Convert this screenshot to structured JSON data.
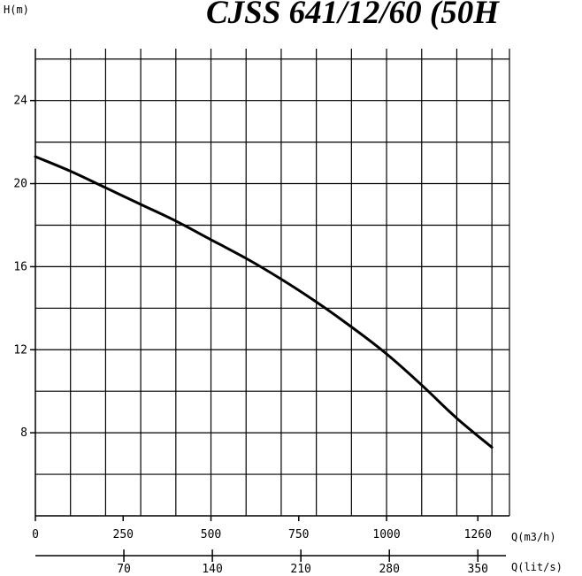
{
  "chart_data": {
    "type": "line",
    "title": "CJSS 641/12/60 (50H",
    "ylabel": "H(m)",
    "xlabel_primary": "Q(m3/h)",
    "xlabel_secondary": "Q(lit/s)",
    "ylim": [
      4,
      26.5
    ],
    "xlim": [
      0,
      1350
    ],
    "y_ticks": [
      8,
      12,
      16,
      20,
      24
    ],
    "x_ticks_primary": [
      {
        "value": 0,
        "label": "0"
      },
      {
        "value": 250,
        "label": "250"
      },
      {
        "value": 500,
        "label": "500"
      },
      {
        "value": 750,
        "label": "750"
      },
      {
        "value": 1000,
        "label": "1000"
      },
      {
        "value": 1260,
        "label": "1260"
      }
    ],
    "x_ticks_secondary": [
      {
        "value": 252,
        "label": "70"
      },
      {
        "value": 504,
        "label": "140"
      },
      {
        "value": 756,
        "label": "210"
      },
      {
        "value": 1008,
        "label": "280"
      },
      {
        "value": 1260,
        "label": "350"
      }
    ],
    "grid": true,
    "series": [
      {
        "x": [
          0,
          100,
          200,
          300,
          400,
          500,
          600,
          700,
          800,
          900,
          1000,
          1100,
          1200,
          1300
        ],
        "y": [
          21.3,
          20.6,
          19.8,
          19.0,
          18.2,
          17.3,
          16.4,
          15.4,
          14.3,
          13.1,
          11.8,
          10.3,
          8.7,
          7.3
        ]
      }
    ]
  }
}
